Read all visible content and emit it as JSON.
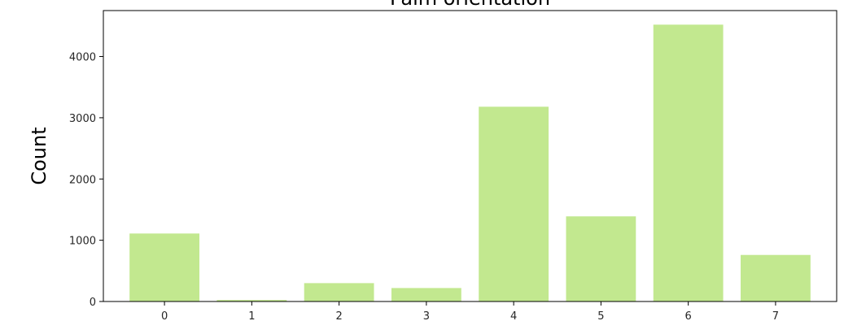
{
  "chart_data": {
    "type": "bar",
    "title": "Palm orientation",
    "xlabel": "",
    "ylabel": "Count",
    "categories": [
      "0",
      "1",
      "2",
      "3",
      "4",
      "5",
      "6",
      "7"
    ],
    "values": [
      1110,
      25,
      300,
      220,
      3180,
      1390,
      4520,
      760
    ],
    "ylim": [
      0,
      4750
    ],
    "yticks": [
      0,
      1000,
      2000,
      3000,
      4000
    ],
    "ytick_labels": [
      "0",
      "1000",
      "2000",
      "3000",
      "4000"
    ],
    "grid": false,
    "bar_color": "#c2e88f"
  }
}
